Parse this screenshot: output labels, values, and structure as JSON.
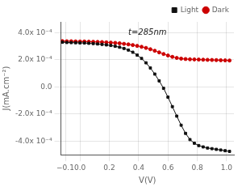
{
  "chart_data": {
    "type": "line",
    "annotations": [
      "t=285nm"
    ],
    "xlabel": "V(V)",
    "ylabel": "J(mA.cm⁻²)",
    "x": [
      -0.12,
      -0.09,
      -0.06,
      -0.03,
      0.0,
      0.03,
      0.06,
      0.09,
      0.12,
      0.15,
      0.18,
      0.21,
      0.24,
      0.27,
      0.3,
      0.33,
      0.36,
      0.39,
      0.42,
      0.45,
      0.48,
      0.51,
      0.54,
      0.57,
      0.6,
      0.63,
      0.66,
      0.69,
      0.72,
      0.75,
      0.78,
      0.81,
      0.84,
      0.87,
      0.9,
      0.93,
      0.96,
      0.99,
      1.02
    ],
    "series": [
      {
        "name": "Light",
        "color": "#111111",
        "marker": "square",
        "values": [
          0.00033,
          0.000328,
          0.000327,
          0.000326,
          0.000325,
          0.000324,
          0.000322,
          0.00032,
          0.000317,
          0.000314,
          0.00031,
          0.000306,
          0.0003,
          0.000293,
          0.000284,
          0.000272,
          0.000256,
          0.000235,
          0.00021,
          0.000178,
          0.00014,
          9.5e-05,
          4.5e-05,
          -1e-05,
          -7.5e-05,
          -0.000145,
          -0.000215,
          -0.000282,
          -0.000342,
          -0.000388,
          -0.000415,
          -0.000432,
          -0.000442,
          -0.00045,
          -0.000455,
          -0.00046,
          -0.000465,
          -0.00047,
          -0.000475
        ]
      },
      {
        "name": "Dark",
        "color": "#cc0000",
        "marker": "circle",
        "values": [
          0.000338,
          0.000337,
          0.000337,
          0.000336,
          0.000335,
          0.000335,
          0.000334,
          0.000333,
          0.000332,
          0.000331,
          0.000329,
          0.000327,
          0.000325,
          0.000322,
          0.000318,
          0.000314,
          0.000309,
          0.000303,
          0.000296,
          0.000288,
          0.000278,
          0.000267,
          0.000255,
          0.000243,
          0.000232,
          0.000222,
          0.000214,
          0.000209,
          0.000206,
          0.000204,
          0.000203,
          0.000202,
          0.000201,
          0.0002,
          0.000199,
          0.000198,
          0.000197,
          0.000196,
          0.000195
        ]
      }
    ],
    "xlim": [
      -0.13,
      1.05
    ],
    "ylim": [
      -0.0005,
      0.00048
    ],
    "xticks": [
      {
        "value": -0.1,
        "label": "−0.1"
      },
      {
        "value": 0.0,
        "label": "0.0"
      },
      0.2,
      0.4,
      0.6,
      0.8,
      {
        "value": 1.0,
        "label": "1.0"
      }
    ],
    "yticks": [
      {
        "value": -0.0004,
        "label": "-4.0x 10⁻⁴"
      },
      {
        "value": -0.0002,
        "label": "-2.0x 10⁻⁴"
      },
      {
        "value": 0.0,
        "label": "0.0"
      },
      {
        "value": 0.0002,
        "label": "2.0x 10⁻⁴"
      },
      {
        "value": 0.0004,
        "label": "4.0x 10⁻⁴"
      }
    ],
    "grid": true,
    "legend": "upper right"
  }
}
